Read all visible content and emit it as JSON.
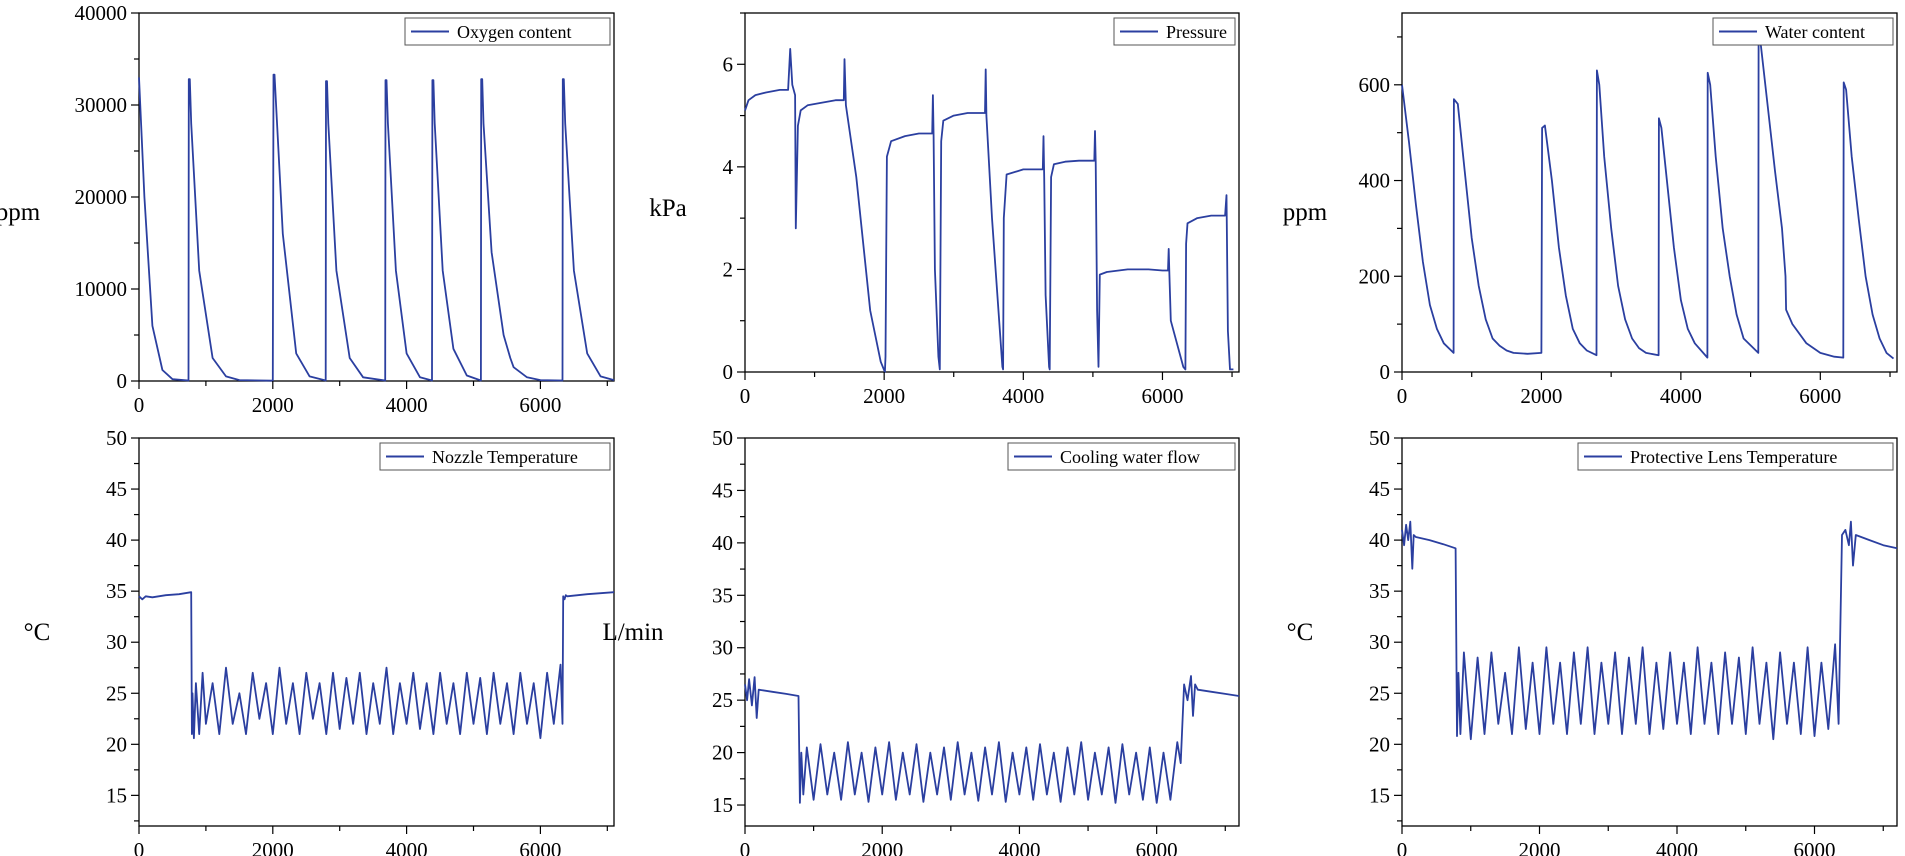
{
  "colors": {
    "series": "#2b3fa0",
    "axis": "#000000",
    "background": "#ffffff"
  },
  "chart_data": [
    {
      "type": "line",
      "title": "",
      "legend": "Oxygen content",
      "legend_position": "top-right",
      "xlabel": "",
      "ylabel": "ppm",
      "xlim": [
        0,
        7100
      ],
      "ylim": [
        0,
        40000
      ],
      "xticks": [
        0,
        2000,
        4000,
        6000
      ],
      "yticks": [
        0,
        10000,
        20000,
        30000,
        40000
      ],
      "x": [
        0,
        80,
        200,
        350,
        500,
        740,
        745,
        760,
        780,
        900,
        1100,
        1300,
        1500,
        2000,
        2010,
        2025,
        2150,
        2350,
        2550,
        2790,
        2795,
        2810,
        2830,
        2950,
        3150,
        3350,
        3680,
        3685,
        3700,
        3720,
        3840,
        4000,
        4200,
        4380,
        4385,
        4400,
        4420,
        4540,
        4700,
        4900,
        5110,
        5115,
        5130,
        5150,
        5270,
        5450,
        5550,
        5600,
        5800,
        6000,
        6330,
        6335,
        6350,
        6370,
        6500,
        6700,
        6900,
        7100
      ],
      "y": [
        33000,
        20000,
        6000,
        1200,
        200,
        50,
        32800,
        32800,
        28000,
        12000,
        2500,
        500,
        100,
        30,
        33300,
        33300,
        16000,
        3000,
        500,
        50,
        32600,
        32600,
        28000,
        12000,
        2500,
        400,
        50,
        32700,
        32700,
        28000,
        12000,
        3000,
        400,
        50,
        32700,
        32700,
        28000,
        12000,
        3500,
        600,
        50,
        32800,
        32800,
        28000,
        14000,
        5000,
        2500,
        1500,
        400,
        100,
        50,
        32800,
        32800,
        28000,
        12000,
        3000,
        500,
        100
      ]
    },
    {
      "type": "line",
      "title": "",
      "legend": "Pressure",
      "legend_position": "top-right",
      "xlabel": "",
      "ylabel": "kPa",
      "xlim": [
        0,
        7100
      ],
      "ylim": [
        0,
        7
      ],
      "xticks": [
        0,
        2000,
        4000,
        6000
      ],
      "yticks": [
        0,
        2,
        4,
        6
      ],
      "x": [
        0,
        50,
        150,
        300,
        500,
        620,
        650,
        680,
        720,
        730,
        760,
        800,
        900,
        1100,
        1300,
        1420,
        1430,
        1450,
        1600,
        1800,
        1950,
        2010,
        2020,
        2040,
        2100,
        2300,
        2500,
        2690,
        2700,
        2710,
        2730,
        2780,
        2800,
        2820,
        2850,
        3000,
        3200,
        3450,
        3460,
        3470,
        3550,
        3700,
        3710,
        3720,
        3760,
        4000,
        4280,
        4290,
        4300,
        4320,
        4370,
        4380,
        4400,
        4440,
        4600,
        4800,
        5020,
        5030,
        5040,
        5060,
        5080,
        5100,
        5200,
        5500,
        5800,
        6000,
        6080,
        6090,
        6100,
        6120,
        6300,
        6330,
        6340,
        6360,
        6500,
        6700,
        6900,
        6920,
        6940,
        6970,
        7020
      ],
      "y": [
        5.1,
        5.3,
        5.4,
        5.45,
        5.5,
        5.5,
        6.3,
        5.6,
        5.4,
        2.8,
        4.8,
        5.1,
        5.2,
        5.25,
        5.3,
        5.3,
        6.1,
        5.2,
        3.8,
        1.2,
        0.2,
        0.0,
        0.3,
        4.2,
        4.5,
        4.6,
        4.65,
        4.65,
        5.4,
        4.6,
        2.0,
        0.3,
        0.05,
        4.5,
        4.9,
        5.0,
        5.05,
        5.05,
        5.9,
        5.0,
        3.0,
        0.1,
        0.05,
        3.0,
        3.85,
        3.95,
        3.95,
        4.6,
        3.8,
        1.5,
        0.1,
        0.05,
        3.8,
        4.05,
        4.1,
        4.12,
        4.12,
        4.7,
        4.1,
        1.2,
        0.1,
        1.9,
        1.95,
        2.0,
        2.0,
        1.98,
        1.98,
        2.4,
        1.9,
        1.0,
        0.1,
        0.05,
        2.5,
        2.9,
        3.0,
        3.05,
        3.05,
        3.45,
        0.8,
        0.05,
        0.05
      ]
    },
    {
      "type": "line",
      "title": "",
      "legend": "Water content",
      "legend_position": "top-right",
      "xlabel": "",
      "ylabel": "ppm",
      "xlim": [
        0,
        7100
      ],
      "ylim": [
        0,
        750
      ],
      "xticks": [
        0,
        2000,
        4000,
        6000
      ],
      "yticks": [
        0,
        200,
        400,
        600
      ],
      "x": [
        0,
        100,
        200,
        300,
        400,
        500,
        600,
        740,
        745,
        800,
        900,
        1000,
        1100,
        1200,
        1300,
        1400,
        1500,
        1600,
        1800,
        2000,
        2010,
        2050,
        2150,
        2250,
        2350,
        2450,
        2550,
        2650,
        2790,
        2795,
        2830,
        2900,
        3000,
        3100,
        3200,
        3300,
        3400,
        3500,
        3680,
        3685,
        3720,
        3800,
        3900,
        4000,
        4100,
        4200,
        4380,
        4385,
        4420,
        4500,
        4600,
        4700,
        4800,
        4900,
        5110,
        5115,
        5150,
        5250,
        5350,
        5450,
        5500,
        5510,
        5600,
        5800,
        6000,
        6200,
        6330,
        6335,
        6370,
        6450,
        6550,
        6650,
        6750,
        6850,
        6950,
        7050
      ],
      "y": [
        600,
        480,
        350,
        230,
        140,
        90,
        60,
        40,
        570,
        560,
        420,
        280,
        180,
        110,
        70,
        55,
        45,
        40,
        38,
        40,
        510,
        515,
        400,
        260,
        160,
        90,
        60,
        45,
        35,
        630,
        600,
        450,
        300,
        180,
        110,
        70,
        50,
        40,
        35,
        530,
        510,
        400,
        260,
        150,
        90,
        60,
        30,
        625,
        600,
        450,
        300,
        200,
        120,
        70,
        40,
        710,
        680,
        550,
        420,
        300,
        200,
        130,
        100,
        60,
        40,
        32,
        30,
        605,
        590,
        450,
        320,
        200,
        120,
        70,
        40,
        28
      ]
    },
    {
      "type": "line",
      "title": "",
      "legend": "Nozzle Temperature",
      "legend_position": "top-right",
      "xlabel": "",
      "ylabel": "°C",
      "xlim": [
        0,
        7100
      ],
      "ylim": [
        12,
        50
      ],
      "xticks": [
        0,
        2000,
        4000,
        6000
      ],
      "yticks": [
        15,
        20,
        25,
        30,
        35,
        40,
        45,
        50
      ],
      "x": [
        0,
        50,
        100,
        200,
        400,
        600,
        780,
        790,
        800,
        820,
        850,
        900,
        950,
        1000,
        1100,
        1200,
        1300,
        1400,
        1500,
        1600,
        1700,
        1800,
        1900,
        2000,
        2100,
        2200,
        2300,
        2400,
        2500,
        2600,
        2700,
        2800,
        2900,
        3000,
        3100,
        3200,
        3300,
        3400,
        3500,
        3600,
        3700,
        3800,
        3900,
        4000,
        4100,
        4200,
        4300,
        4400,
        4500,
        4600,
        4700,
        4800,
        4900,
        5000,
        5100,
        5200,
        5300,
        5400,
        5500,
        5600,
        5700,
        5800,
        5900,
        6000,
        6100,
        6200,
        6300,
        6330,
        6340,
        6360,
        6380,
        6400,
        6700,
        7100
      ],
      "y": [
        34.5,
        34.2,
        34.5,
        34.4,
        34.6,
        34.7,
        34.9,
        21,
        25,
        20.6,
        26,
        21,
        27,
        22,
        26,
        21,
        27.5,
        22,
        25,
        21,
        27,
        22.5,
        26,
        21,
        27.5,
        22,
        26,
        21,
        27,
        22.5,
        26,
        21,
        27,
        21.5,
        26.5,
        22,
        27,
        21,
        26,
        22,
        27.5,
        21,
        26,
        22,
        27,
        21.5,
        26,
        21,
        27,
        22,
        26,
        21,
        27,
        22,
        26.5,
        21,
        27,
        22,
        26,
        21,
        27,
        22,
        26,
        20.6,
        27,
        22,
        27.8,
        22,
        34.5,
        34.2,
        34.6,
        34.5,
        34.7,
        34.9
      ]
    },
    {
      "type": "line",
      "title": "",
      "legend": "Cooling water flow",
      "legend_position": "top-right",
      "xlabel": "",
      "ylabel": "L/min",
      "xlim": [
        0,
        7200
      ],
      "ylim": [
        13,
        50
      ],
      "xticks": [
        0,
        2000,
        4000,
        6000
      ],
      "yticks": [
        15,
        20,
        25,
        30,
        35,
        40,
        45,
        50
      ],
      "x": [
        0,
        30,
        60,
        100,
        140,
        170,
        200,
        400,
        600,
        780,
        800,
        820,
        850,
        900,
        1000,
        1100,
        1200,
        1300,
        1400,
        1500,
        1600,
        1700,
        1800,
        1900,
        2000,
        2100,
        2200,
        2300,
        2400,
        2500,
        2600,
        2700,
        2800,
        2900,
        3000,
        3100,
        3200,
        3300,
        3400,
        3500,
        3600,
        3700,
        3800,
        3900,
        4000,
        4100,
        4200,
        4300,
        4400,
        4500,
        4600,
        4700,
        4800,
        4900,
        5000,
        5100,
        5200,
        5300,
        5400,
        5500,
        5600,
        5700,
        5800,
        5900,
        6000,
        6100,
        6200,
        6300,
        6350,
        6400,
        6450,
        6500,
        6530,
        6560,
        6600,
        6800,
        7000,
        7200
      ],
      "y": [
        26.5,
        25,
        27,
        24.5,
        27.2,
        23.3,
        26,
        25.8,
        25.6,
        25.4,
        15.2,
        20,
        16,
        20.5,
        15.5,
        20.8,
        16,
        20,
        15.5,
        21,
        16,
        20,
        15.3,
        20.5,
        16,
        21,
        15.5,
        20,
        16,
        20.8,
        15.3,
        20,
        16,
        20.5,
        15.5,
        21,
        16,
        20,
        15.4,
        20.5,
        16,
        21,
        15.3,
        20,
        16,
        20.5,
        15.5,
        20.8,
        16,
        20,
        15.3,
        20.5,
        16,
        21,
        15.5,
        20,
        16,
        20.5,
        15.2,
        20.8,
        16,
        20,
        15.5,
        20.5,
        15.2,
        20,
        15.5,
        21,
        19,
        26.5,
        25,
        27.3,
        23.5,
        26.5,
        26,
        25.8,
        25.6,
        25.4
      ]
    },
    {
      "type": "line",
      "title": "",
      "legend": "Protective Lens Temperature",
      "legend_position": "top-right",
      "xlabel": "",
      "ylabel": "°C",
      "xlim": [
        0,
        7200
      ],
      "ylim": [
        12,
        50
      ],
      "xticks": [
        0,
        2000,
        4000,
        6000
      ],
      "yticks": [
        15,
        20,
        25,
        30,
        35,
        40,
        45,
        50
      ],
      "x": [
        0,
        30,
        60,
        90,
        120,
        150,
        170,
        200,
        400,
        600,
        780,
        800,
        820,
        850,
        900,
        1000,
        1100,
        1200,
        1300,
        1400,
        1500,
        1600,
        1700,
        1800,
        1900,
        2000,
        2100,
        2200,
        2300,
        2400,
        2500,
        2600,
        2700,
        2800,
        2900,
        3000,
        3100,
        3200,
        3300,
        3400,
        3500,
        3600,
        3700,
        3800,
        3900,
        4000,
        4100,
        4200,
        4300,
        4400,
        4500,
        4600,
        4700,
        4800,
        4900,
        5000,
        5100,
        5200,
        5300,
        5400,
        5500,
        5600,
        5700,
        5800,
        5900,
        6000,
        6100,
        6200,
        6300,
        6350,
        6400,
        6450,
        6500,
        6530,
        6560,
        6600,
        6800,
        7000,
        7200
      ],
      "y": [
        41,
        39.5,
        41.5,
        40,
        41.8,
        37.2,
        40.5,
        40.3,
        40,
        39.6,
        39.2,
        20.8,
        27,
        21,
        29,
        20.5,
        28.5,
        21,
        29,
        22,
        27,
        21,
        29.5,
        21.5,
        28,
        21,
        29.5,
        22,
        28,
        21,
        29,
        22,
        29.5,
        21,
        28,
        22,
        29,
        21,
        28.5,
        22,
        29.5,
        21,
        28,
        21.5,
        29,
        22,
        28,
        21,
        29.5,
        22,
        28,
        21,
        29,
        22,
        28.5,
        21,
        29.5,
        22,
        28,
        20.5,
        29,
        22,
        28,
        21,
        29.5,
        20.8,
        28,
        21.5,
        29.8,
        22,
        40.5,
        41,
        39.5,
        41.8,
        37.5,
        40.5,
        40,
        39.5,
        39.2
      ]
    }
  ]
}
